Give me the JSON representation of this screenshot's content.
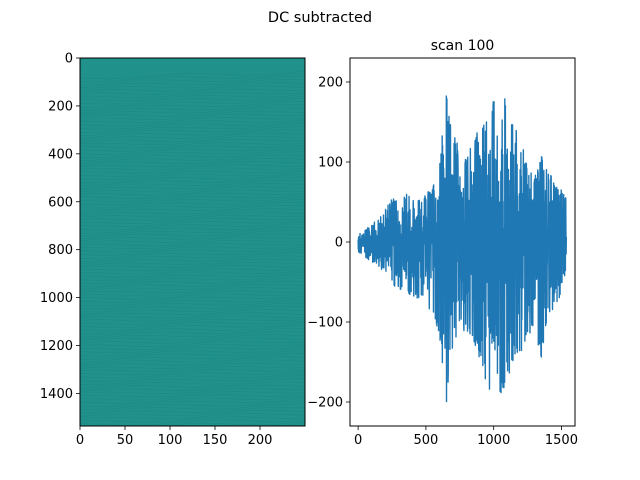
{
  "figure": {
    "suptitle": "DC subtracted"
  },
  "chart_data": [
    {
      "type": "heatmap",
      "title": "",
      "xlabel": "",
      "ylabel": "",
      "xlim": [
        0,
        250
      ],
      "ylim": [
        1536,
        0
      ],
      "xticks": [
        0,
        50,
        100,
        150,
        200
      ],
      "yticks": [
        0,
        200,
        400,
        600,
        800,
        1000,
        1200,
        1400
      ],
      "colormap_color": "#21918c",
      "line_color": "#1d7d7a",
      "grid": false
    },
    {
      "type": "line",
      "title": "scan 100",
      "xlabel": "",
      "ylabel": "",
      "xlim": [
        -60,
        1600
      ],
      "ylim": [
        -230,
        230
      ],
      "xticks": [
        0,
        500,
        1000,
        1500
      ],
      "yticks": [
        -200,
        -100,
        0,
        100,
        200
      ],
      "grid": false,
      "series": [
        {
          "color": "#1f77b4",
          "x": [
            0,
            50,
            100,
            150,
            200,
            250,
            300,
            350,
            400,
            450,
            500,
            550,
            600,
            625,
            650,
            675,
            700,
            750,
            800,
            850,
            900,
            950,
            980,
            1000,
            1020,
            1050,
            1080,
            1100,
            1150,
            1200,
            1250,
            1300,
            1350,
            1400,
            1450,
            1500,
            1536
          ],
          "max": [
            10,
            15,
            22,
            30,
            40,
            55,
            60,
            62,
            58,
            55,
            60,
            70,
            95,
            145,
            190,
            160,
            140,
            115,
            110,
            125,
            148,
            160,
            170,
            195,
            150,
            175,
            185,
            160,
            150,
            125,
            100,
            80,
            110,
            92,
            75,
            65,
            55
          ],
          "min": [
            -12,
            -20,
            -25,
            -30,
            -40,
            -55,
            -60,
            -62,
            -70,
            -75,
            -80,
            -95,
            -120,
            -160,
            -205,
            -150,
            -130,
            -110,
            -115,
            -130,
            -160,
            -180,
            -200,
            -215,
            -180,
            -195,
            -185,
            -170,
            -150,
            -140,
            -125,
            -110,
            -148,
            -95,
            -85,
            -70,
            -55
          ]
        }
      ]
    }
  ]
}
